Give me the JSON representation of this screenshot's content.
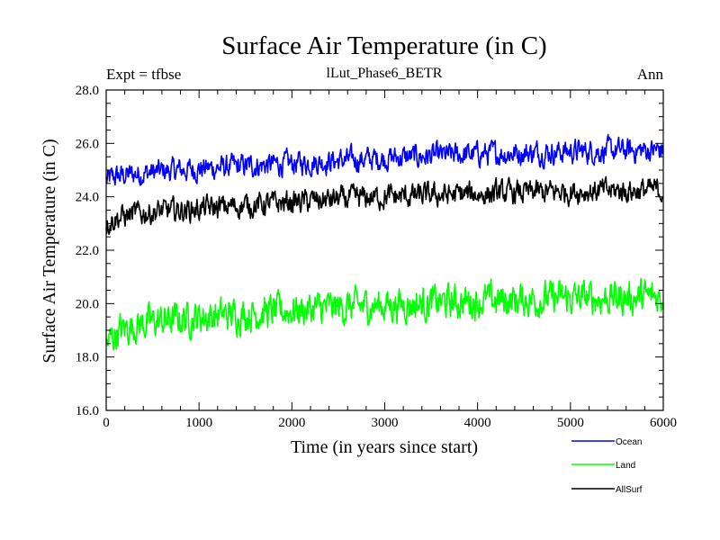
{
  "chart_data": {
    "type": "line",
    "title": "Surface Air Temperature (in C)",
    "subtitle_left": "Expt = tfbse",
    "subtitle_center": "lLut_Phase6_BETR",
    "subtitle_right": "Ann",
    "xlabel": "Time (in years since start)",
    "ylabel": "Surface Air Temperature (in C)",
    "xlim": [
      0,
      6000
    ],
    "ylim": [
      16.0,
      28.0
    ],
    "x_ticks": [
      0,
      1000,
      2000,
      3000,
      4000,
      5000,
      6000
    ],
    "x_tick_labels": [
      "0",
      "1000",
      "2000",
      "3000",
      "4000",
      "5000",
      "6000"
    ],
    "y_ticks": [
      16,
      18,
      20,
      22,
      24,
      26,
      28
    ],
    "y_tick_labels": [
      "16.0",
      "18.0",
      "20.0",
      "22.0",
      "24.0",
      "26.0",
      "28.0"
    ],
    "series": [
      {
        "name": "Ocean",
        "color": "#0000ff",
        "trend_x": [
          0,
          100,
          300,
          600,
          1000,
          2000,
          3000,
          4000,
          5000,
          6000
        ],
        "trend_y": [
          24.6,
          24.75,
          24.85,
          24.95,
          25.05,
          25.25,
          25.45,
          25.6,
          25.7,
          25.75
        ],
        "noise": 0.35
      },
      {
        "name": "Land",
        "color": "#00ff00",
        "trend_x": [
          0,
          100,
          300,
          600,
          1000,
          2000,
          3000,
          4000,
          5000,
          6000
        ],
        "trend_y": [
          18.4,
          18.9,
          19.2,
          19.35,
          19.5,
          19.75,
          19.95,
          20.1,
          20.2,
          20.25
        ],
        "noise": 0.5
      },
      {
        "name": "AllSurf",
        "color": "#000000",
        "trend_x": [
          0,
          100,
          300,
          600,
          1000,
          2000,
          3000,
          4000,
          5000,
          6000
        ],
        "trend_y": [
          23.0,
          23.2,
          23.35,
          23.45,
          23.55,
          23.8,
          24.0,
          24.1,
          24.2,
          24.25
        ],
        "noise": 0.35
      }
    ]
  }
}
